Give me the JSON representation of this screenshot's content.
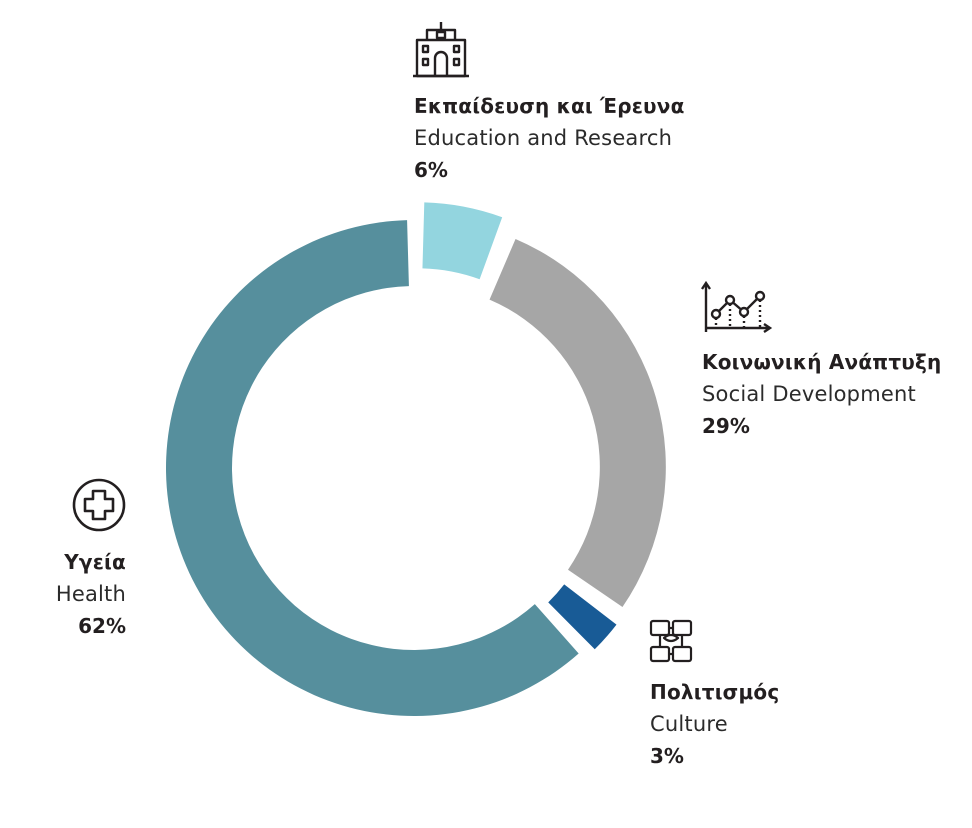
{
  "chart_data": {
    "type": "pie",
    "variant": "donut",
    "unit": "%",
    "slices": [
      {
        "greek": "Εκπαίδευση και Έρευνα",
        "english": "Education and Research",
        "value": 6,
        "label": "6%",
        "color": "#93d5df",
        "icon": "school-building-icon"
      },
      {
        "greek": "Κοινωνική Ανάπτυξη",
        "english": "Social Development",
        "value": 29,
        "label": "29%",
        "color": "#a6a6a6",
        "icon": "growth-line-chart-icon"
      },
      {
        "greek": "Πολιτισμός",
        "english": "Culture",
        "value": 3,
        "label": "3%",
        "color": "#185b96",
        "icon": "joined-hands-icon"
      },
      {
        "greek": "Υγεία",
        "english": "Health",
        "value": 62,
        "label": "62%",
        "color": "#568f9d",
        "icon": "medical-cross-icon"
      }
    ]
  }
}
